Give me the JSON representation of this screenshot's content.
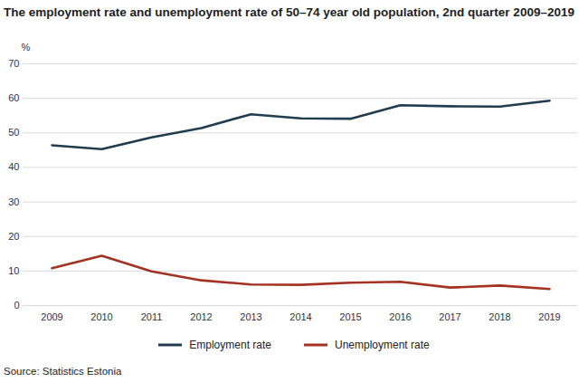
{
  "chart_data": {
    "type": "line",
    "title": "The employment rate and unemployment rate of 50–74 year old population, 2nd quarter 2009–2019",
    "y_label": "%",
    "source": "Source: Statistics Estonia",
    "categories": [
      "2009",
      "2010",
      "2011",
      "2012",
      "2013",
      "2014",
      "2015",
      "2016",
      "2017",
      "2018",
      "2019"
    ],
    "series": [
      {
        "name": "Employment rate",
        "color": "#1f3d4f",
        "values": [
          46.4,
          45.3,
          48.7,
          51.4,
          55.4,
          54.2,
          54.1,
          58.0,
          57.7,
          57.6,
          59.3
        ]
      },
      {
        "name": "Unemployment rate",
        "color": "#a43221",
        "values": [
          10.8,
          14.4,
          9.9,
          7.3,
          6.1,
          6.0,
          6.6,
          6.9,
          5.2,
          5.8,
          4.8
        ]
      }
    ],
    "ylim": [
      0,
      70
    ],
    "yticks": [
      0,
      10,
      20,
      30,
      40,
      50,
      60,
      70
    ],
    "grid": true,
    "legend": "bottom"
  }
}
